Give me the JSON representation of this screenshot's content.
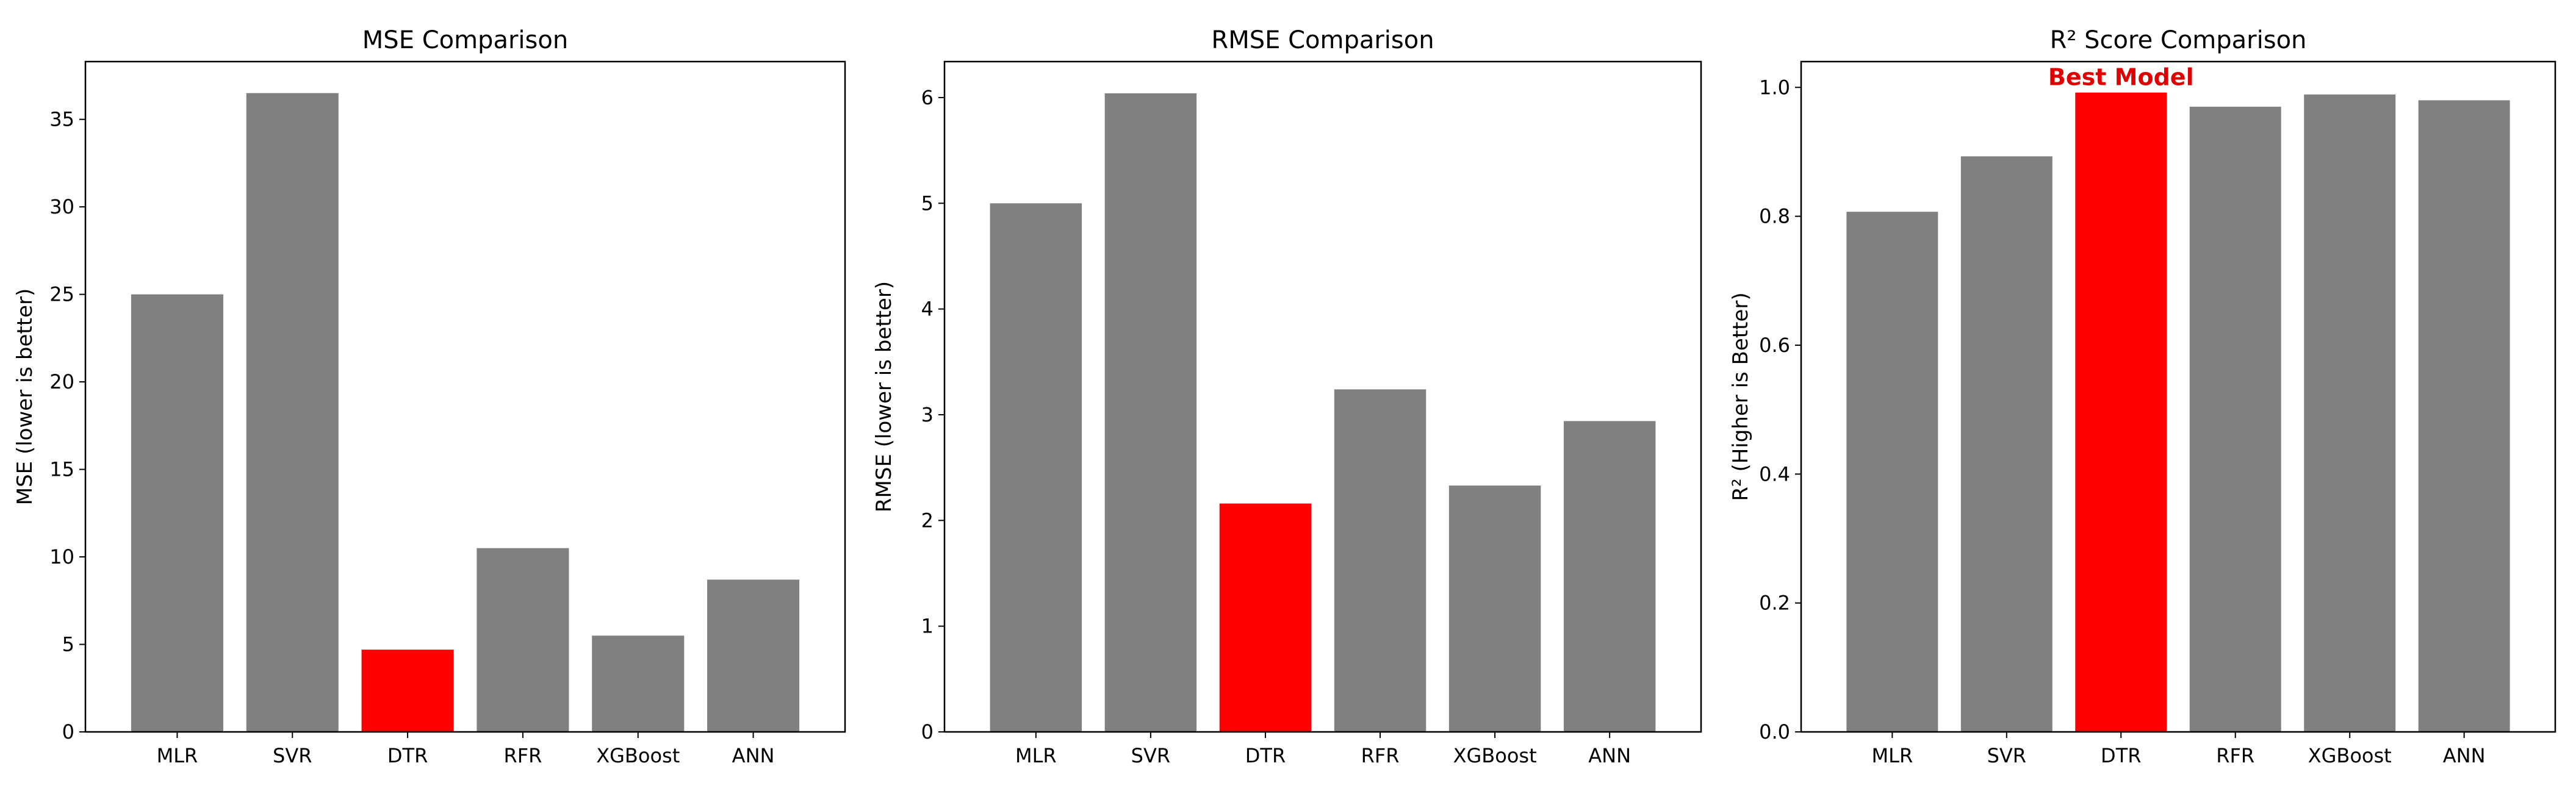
{
  "colors": {
    "default_bar": "#808080",
    "highlight_bar": "#ff0000",
    "annotation_text": "#e00000",
    "axis": "#000000"
  },
  "chart_data": [
    {
      "type": "bar",
      "title": "MSE Comparison",
      "xlabel": "",
      "ylabel": "MSE (lower is better)",
      "categories": [
        "MLR",
        "SVR",
        "DTR",
        "RFR",
        "XGBoost",
        "ANN"
      ],
      "values": [
        25.0,
        36.5,
        4.7,
        10.5,
        5.5,
        8.7
      ],
      "highlight": "DTR",
      "ylim": [
        0,
        38.3
      ],
      "yticks": [
        0,
        5,
        10,
        15,
        20,
        25,
        30,
        35
      ],
      "ytick_labels": [
        "0",
        "5",
        "10",
        "15",
        "20",
        "25",
        "30",
        "35"
      ],
      "grid": false,
      "legend": "none"
    },
    {
      "type": "bar",
      "title": "RMSE Comparison",
      "xlabel": "",
      "ylabel": "RMSE (lower is better)",
      "categories": [
        "MLR",
        "SVR",
        "DTR",
        "RFR",
        "XGBoost",
        "ANN"
      ],
      "values": [
        5.0,
        6.04,
        2.16,
        3.24,
        2.33,
        2.94
      ],
      "highlight": "DTR",
      "ylim": [
        0,
        6.34
      ],
      "yticks": [
        0,
        1,
        2,
        3,
        4,
        5,
        6
      ],
      "ytick_labels": [
        "0",
        "1",
        "2",
        "3",
        "4",
        "5",
        "6"
      ],
      "grid": false,
      "legend": "none"
    },
    {
      "type": "bar",
      "title": "R² Score Comparison",
      "xlabel": "",
      "ylabel": "R² (Higher is Better)",
      "categories": [
        "MLR",
        "SVR",
        "DTR",
        "RFR",
        "XGBoost",
        "ANN"
      ],
      "values": [
        0.807,
        0.893,
        0.992,
        0.97,
        0.989,
        0.98
      ],
      "highlight": "DTR",
      "annotation": {
        "text": "Best Model",
        "category": "DTR"
      },
      "ylim": [
        0,
        1.04
      ],
      "yticks": [
        0,
        0.2,
        0.4,
        0.6,
        0.8,
        1.0
      ],
      "ytick_labels": [
        "0.0",
        "0.2",
        "0.4",
        "0.6",
        "0.8",
        "1.0"
      ],
      "grid": false,
      "legend": "none"
    }
  ]
}
